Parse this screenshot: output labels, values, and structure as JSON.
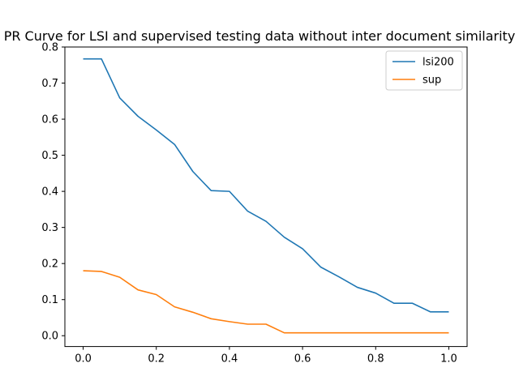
{
  "chart_data": {
    "type": "line",
    "title": "PR Curve for LSI and supervised testing data without inter document similarity",
    "xlabel": "",
    "ylabel": "",
    "xlim": [
      -0.05,
      1.05
    ],
    "ylim": [
      -0.03,
      0.8
    ],
    "x_ticks": [
      "0.0",
      "0.2",
      "0.4",
      "0.6",
      "0.8",
      "1.0"
    ],
    "y_ticks": [
      "0.0",
      "0.1",
      "0.2",
      "0.3",
      "0.4",
      "0.5",
      "0.6",
      "0.7",
      "0.8"
    ],
    "grid": false,
    "legend_position": "top-right",
    "x": [
      0.0,
      0.05,
      0.1,
      0.15,
      0.2,
      0.25,
      0.3,
      0.35,
      0.4,
      0.45,
      0.5,
      0.55,
      0.6,
      0.65,
      0.7,
      0.75,
      0.8,
      0.85,
      0.9,
      0.95,
      1.0
    ],
    "series": [
      {
        "name": "lsi200",
        "color": "#1f77b4",
        "values": [
          0.767,
          0.767,
          0.659,
          0.608,
          0.57,
          0.53,
          0.455,
          0.402,
          0.4,
          0.345,
          0.317,
          0.273,
          0.241,
          0.19,
          0.163,
          0.134,
          0.118,
          0.09,
          0.09,
          0.066,
          0.066
        ]
      },
      {
        "name": "sup",
        "color": "#ff7f0e",
        "values": [
          0.18,
          0.178,
          0.162,
          0.127,
          0.114,
          0.08,
          0.065,
          0.047,
          0.039,
          0.032,
          0.032,
          0.008,
          0.008,
          0.008,
          0.008,
          0.008,
          0.008,
          0.008,
          0.008,
          0.008,
          0.008
        ]
      }
    ]
  }
}
